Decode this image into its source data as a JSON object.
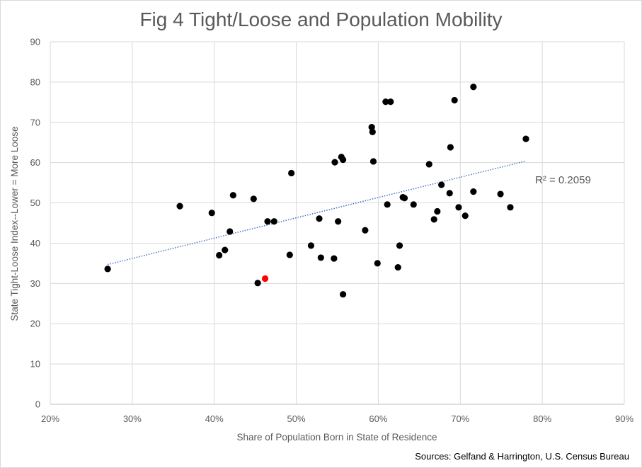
{
  "chart_data": {
    "type": "scatter",
    "title": "Fig 4 Tight/Loose and Population Mobility",
    "xlabel": "Share of Population Born in State of Residence",
    "ylabel": "State Tight-Loose Index--Lower = More Loose",
    "xlim": [
      0.2,
      0.9
    ],
    "ylim": [
      0,
      90
    ],
    "x_ticks": [
      0.2,
      0.3,
      0.4,
      0.5,
      0.6,
      0.7,
      0.8,
      0.9
    ],
    "x_tick_labels": [
      "20%",
      "30%",
      "40%",
      "50%",
      "60%",
      "70%",
      "80%",
      "90%"
    ],
    "y_ticks": [
      0,
      10,
      20,
      30,
      40,
      50,
      60,
      70,
      80,
      90
    ],
    "y_tick_labels": [
      "0",
      "10",
      "20",
      "30",
      "40",
      "50",
      "60",
      "70",
      "80",
      "90"
    ],
    "grid": true,
    "point_color": "#000000",
    "highlight_color": "#ff0000",
    "trendline_color": "#4472c4",
    "series": [
      {
        "points": [
          [
            0.27,
            33.6
          ],
          [
            0.358,
            49.2
          ],
          [
            0.397,
            47.5
          ],
          [
            0.406,
            37.0
          ],
          [
            0.413,
            38.3
          ],
          [
            0.419,
            42.9
          ],
          [
            0.423,
            51.9
          ],
          [
            0.448,
            51.0
          ],
          [
            0.453,
            30.1
          ],
          [
            0.465,
            45.4
          ],
          [
            0.473,
            45.4
          ],
          [
            0.492,
            37.1
          ],
          [
            0.494,
            57.4
          ],
          [
            0.518,
            39.4
          ],
          [
            0.528,
            46.1
          ],
          [
            0.53,
            36.4
          ],
          [
            0.546,
            36.2
          ],
          [
            0.547,
            60.1
          ],
          [
            0.551,
            45.4
          ],
          [
            0.555,
            61.4
          ],
          [
            0.557,
            60.7
          ],
          [
            0.557,
            27.3
          ],
          [
            0.584,
            43.2
          ],
          [
            0.592,
            68.8
          ],
          [
            0.593,
            67.6
          ],
          [
            0.594,
            60.3
          ],
          [
            0.599,
            35.0
          ],
          [
            0.609,
            75.1
          ],
          [
            0.611,
            49.6
          ],
          [
            0.615,
            75.1
          ],
          [
            0.624,
            34.0
          ],
          [
            0.626,
            39.4
          ],
          [
            0.63,
            51.4
          ],
          [
            0.632,
            51.2
          ],
          [
            0.643,
            49.6
          ],
          [
            0.662,
            59.6
          ],
          [
            0.668,
            45.9
          ],
          [
            0.672,
            47.9
          ],
          [
            0.677,
            54.5
          ],
          [
            0.687,
            52.4
          ],
          [
            0.688,
            63.8
          ],
          [
            0.693,
            75.5
          ],
          [
            0.698,
            48.9
          ],
          [
            0.706,
            46.8
          ],
          [
            0.716,
            78.8
          ],
          [
            0.716,
            52.8
          ],
          [
            0.749,
            52.2
          ],
          [
            0.761,
            48.9
          ],
          [
            0.78,
            65.9
          ]
        ]
      },
      {
        "points": [
          [
            0.462,
            31.2
          ]
        ]
      }
    ],
    "trendline": {
      "x": [
        0.27,
        0.78
      ],
      "y": [
        34.7,
        60.4
      ]
    },
    "annotation": "R² = 0.2059"
  },
  "source_note": "Sources: Gelfand & Harrington, U.S.  Census Bureau"
}
